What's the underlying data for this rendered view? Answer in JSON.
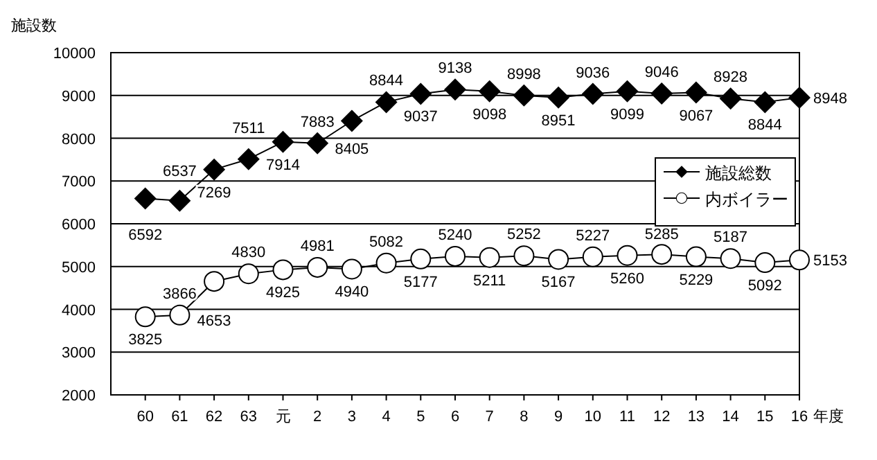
{
  "chart_data": {
    "type": "line",
    "ylabel": "施設数",
    "xlabel": "年度",
    "categories": [
      "60",
      "61",
      "62",
      "63",
      "元",
      "2",
      "3",
      "4",
      "5",
      "6",
      "7",
      "8",
      "9",
      "10",
      "11",
      "12",
      "13",
      "14",
      "15",
      "16"
    ],
    "series": [
      {
        "name": "施設総数",
        "color": "#000000",
        "marker": "diamond",
        "values": [
          6592,
          6537,
          7269,
          7511,
          7914,
          7883,
          8405,
          8844,
          9037,
          9138,
          9098,
          8998,
          8951,
          9036,
          9099,
          9046,
          9067,
          8928,
          8844,
          8948
        ]
      },
      {
        "name": "内ボイラー",
        "color": "#000000",
        "marker": "circle",
        "values": [
          3825,
          3866,
          4653,
          4830,
          4925,
          4981,
          4940,
          5082,
          5177,
          5240,
          5211,
          5252,
          5167,
          5227,
          5260,
          5285,
          5229,
          5187,
          5092,
          5153
        ]
      }
    ],
    "ylim": [
      2000,
      10000
    ],
    "yticks": [
      2000,
      3000,
      4000,
      5000,
      6000,
      7000,
      8000,
      9000,
      10000
    ],
    "grid": "y",
    "legend": "right",
    "data_labels": true,
    "line_style": "solid"
  }
}
